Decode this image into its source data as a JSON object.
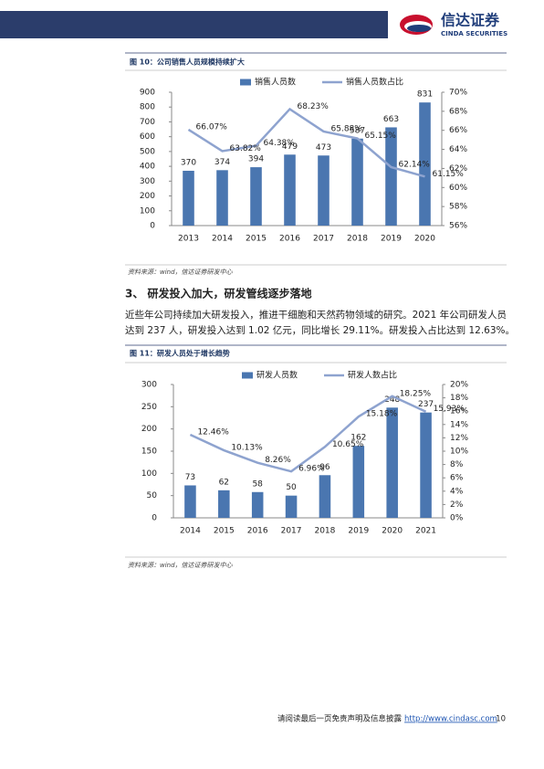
{
  "header": {
    "logo_cn": "信达证券",
    "logo_en": "CINDA SECURITIES"
  },
  "section": {
    "heading": "3、 研发投入加大，研发管线逐步落地",
    "lines": [
      "近些年公司持续加大研发投入，推进干细胞和天然药物领域的研究。2021 年公司研发人员",
      "达到 237 人，研发投入达到 1.02 亿元，同比增长 29.11%。研发投入占比达到 12.63%。"
    ]
  },
  "footer": {
    "notice": "请阅读最后一页免责声明及信息披露",
    "url": "http://www.cindasc.com",
    "page": "10"
  },
  "chart_data": [
    {
      "type": "bar",
      "title": "图 10：公司销售人员规模持续扩大",
      "source": "资料来源：wind，信达证券研发中心",
      "categories": [
        "2013",
        "2014",
        "2015",
        "2016",
        "2017",
        "2018",
        "2019",
        "2020"
      ],
      "series": [
        {
          "name": "销售人员数",
          "type": "bar",
          "color": "#4a76b0",
          "values": [
            370,
            374,
            394,
            479,
            473,
            587,
            663,
            831
          ]
        },
        {
          "name": "销售人员数占比",
          "type": "line",
          "axis": "y2",
          "color": "#8ea3cf",
          "values": [
            66.07,
            63.82,
            64.38,
            68.23,
            65.88,
            65.15,
            62.14,
            61.15
          ],
          "value_labels": [
            "66.07%",
            "63.82%",
            "64.38%",
            "68.23%",
            "65.88%",
            "65.15%",
            "62.14%",
            "61.15%"
          ]
        }
      ],
      "ylim": [
        0,
        900
      ],
      "yticks": [
        0,
        100,
        200,
        300,
        400,
        500,
        600,
        700,
        800,
        900
      ],
      "y2lim": [
        56,
        70
      ],
      "y2ticks": [
        {
          "value": 56,
          "label": "56%"
        },
        {
          "value": 58,
          "label": "58%"
        },
        {
          "value": 60,
          "label": "60%"
        },
        {
          "value": 62,
          "label": "62%"
        },
        {
          "value": 64,
          "label": "64%"
        },
        {
          "value": 66,
          "label": "66%"
        },
        {
          "value": 68,
          "label": "68%"
        },
        {
          "value": 70,
          "label": "70%"
        }
      ],
      "grid": false,
      "legend": "top"
    },
    {
      "type": "bar",
      "title": "图 11：研发人员处于增长趋势",
      "source": "资料来源：wind，信达证券研发中心",
      "categories": [
        "2014",
        "2015",
        "2016",
        "2017",
        "2018",
        "2019",
        "2020",
        "2021"
      ],
      "series": [
        {
          "name": "研发人员数",
          "type": "bar",
          "color": "#4a76b0",
          "values": [
            73,
            62,
            58,
            50,
            96,
            162,
            248,
            237
          ]
        },
        {
          "name": "研发人数占比",
          "type": "line",
          "axis": "y2",
          "color": "#8ea3cf",
          "values": [
            12.46,
            10.13,
            8.26,
            6.96,
            10.65,
            15.18,
            18.25,
            15.93
          ],
          "value_labels": [
            "12.46%",
            "10.13%",
            "8.26%",
            "6.96%",
            "10.65%",
            "15.18%",
            "18.25%",
            "15.93%"
          ]
        }
      ],
      "ylim": [
        0,
        300
      ],
      "yticks": [
        0,
        50,
        100,
        150,
        200,
        250,
        300
      ],
      "y2lim": [
        0,
        20
      ],
      "y2ticks": [
        {
          "value": 0,
          "label": "0%"
        },
        {
          "value": 2,
          "label": "2%"
        },
        {
          "value": 4,
          "label": "4%"
        },
        {
          "value": 6,
          "label": "6%"
        },
        {
          "value": 8,
          "label": "8%"
        },
        {
          "value": 10,
          "label": "10%"
        },
        {
          "value": 12,
          "label": "12%"
        },
        {
          "value": 14,
          "label": "14%"
        },
        {
          "value": 16,
          "label": "16%"
        },
        {
          "value": 18,
          "label": "18%"
        },
        {
          "value": 20,
          "label": "20%"
        }
      ],
      "grid": false,
      "legend": "top"
    }
  ]
}
